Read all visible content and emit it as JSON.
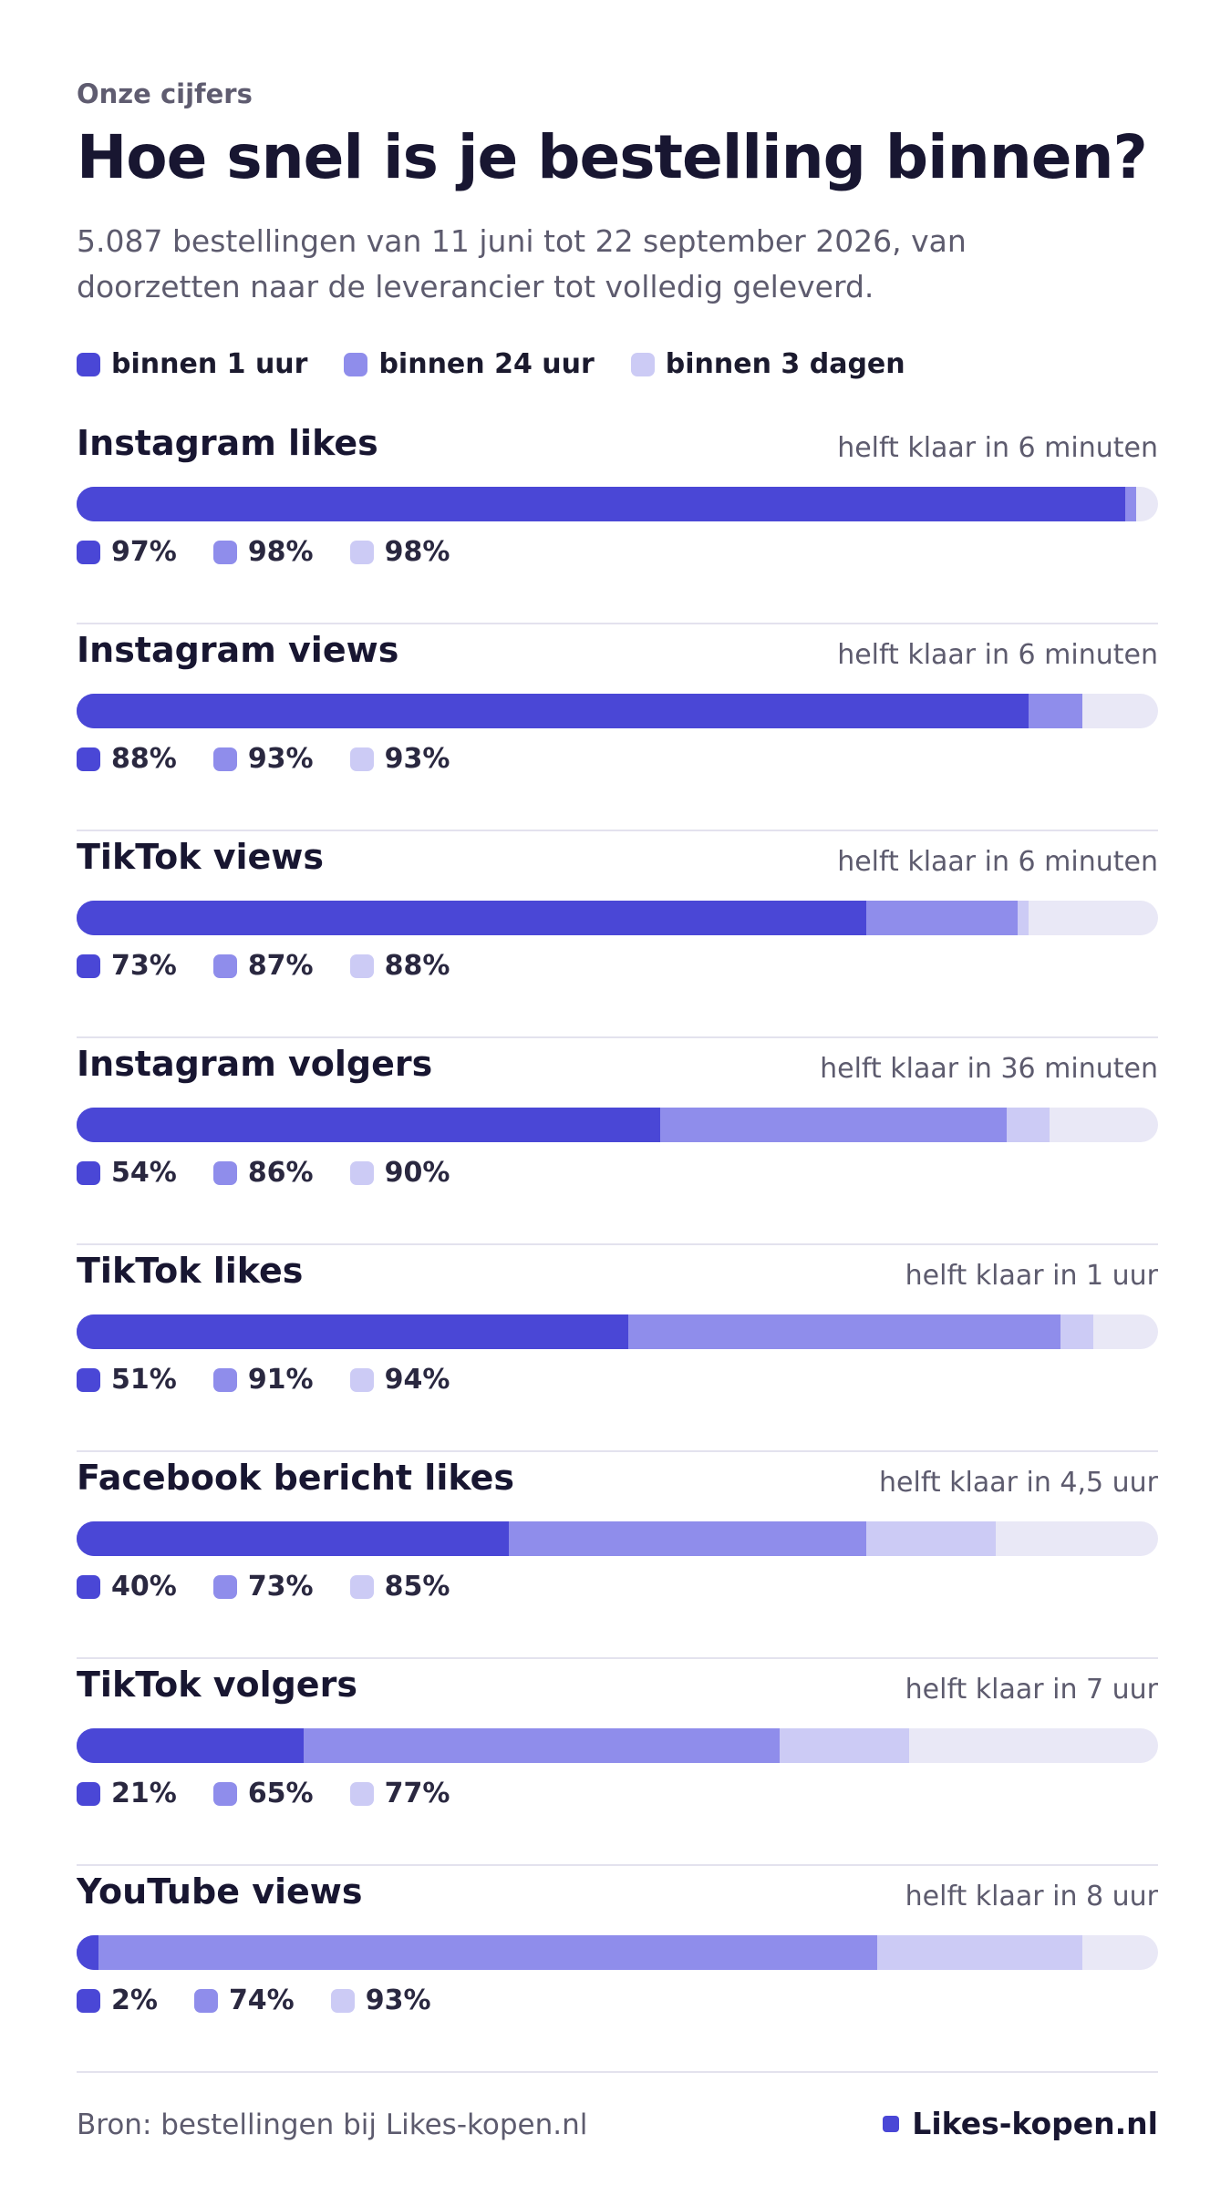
{
  "header": {
    "eyebrow": "Onze cijfers",
    "title": "Hoe snel is je bestelling binnen?",
    "subtitle": "5.087 bestellingen van 11 juni tot 22 september 2026, van doorzetten naar de leverancier tot volledig geleverd."
  },
  "legend": [
    "binnen 1 uur",
    "binnen 24 uur",
    "binnen 3 dagen"
  ],
  "colors": {
    "within_1h": "#4a47d6",
    "within_24h": "#8f8deb",
    "within_3d": "#cccbf5",
    "track": "#e9e8f6"
  },
  "chart_data": {
    "type": "bar",
    "stacked": "cumulative-percentage",
    "series": [
      {
        "name": "binnen 1 uur",
        "values": [
          97,
          88,
          73,
          54,
          51,
          40,
          21,
          2
        ]
      },
      {
        "name": "binnen 24 uur",
        "values": [
          98,
          93,
          87,
          86,
          91,
          73,
          65,
          74
        ]
      },
      {
        "name": "binnen 3 dagen",
        "values": [
          98,
          93,
          88,
          90,
          94,
          85,
          77,
          93
        ]
      }
    ],
    "categories": [
      "Instagram likes",
      "Instagram views",
      "TikTok views",
      "Instagram volgers",
      "TikTok likes",
      "Facebook bericht likes",
      "TikTok volgers",
      "YouTube views"
    ],
    "rows": [
      {
        "name": "Instagram likes",
        "half": "helft klaar in 6 minuten",
        "p1": 97,
        "p24": 98,
        "p3d": 98,
        "p1_label": "97%",
        "p24_label": "98%",
        "p3d_label": "98%"
      },
      {
        "name": "Instagram views",
        "half": "helft klaar in 6 minuten",
        "p1": 88,
        "p24": 93,
        "p3d": 93,
        "p1_label": "88%",
        "p24_label": "93%",
        "p3d_label": "93%"
      },
      {
        "name": "TikTok views",
        "half": "helft klaar in 6 minuten",
        "p1": 73,
        "p24": 87,
        "p3d": 88,
        "p1_label": "73%",
        "p24_label": "87%",
        "p3d_label": "88%"
      },
      {
        "name": "Instagram volgers",
        "half": "helft klaar in 36 minuten",
        "p1": 54,
        "p24": 86,
        "p3d": 90,
        "p1_label": "54%",
        "p24_label": "86%",
        "p3d_label": "90%"
      },
      {
        "name": "TikTok likes",
        "half": "helft klaar in 1 uur",
        "p1": 51,
        "p24": 91,
        "p3d": 94,
        "p1_label": "51%",
        "p24_label": "91%",
        "p3d_label": "94%"
      },
      {
        "name": "Facebook bericht likes",
        "half": "helft klaar in 4,5 uur",
        "p1": 40,
        "p24": 73,
        "p3d": 85,
        "p1_label": "40%",
        "p24_label": "73%",
        "p3d_label": "85%"
      },
      {
        "name": "TikTok volgers",
        "half": "helft klaar in 7 uur",
        "p1": 21,
        "p24": 65,
        "p3d": 77,
        "p1_label": "21%",
        "p24_label": "65%",
        "p3d_label": "77%"
      },
      {
        "name": "YouTube views",
        "half": "helft klaar in 8 uur",
        "p1": 2,
        "p24": 74,
        "p3d": 93,
        "p1_label": "2%",
        "p24_label": "74%",
        "p3d_label": "93%"
      }
    ],
    "xlim": [
      0,
      100
    ],
    "legend_position": "top-left"
  },
  "footer": {
    "source": "Bron: bestellingen bij Likes-kopen.nl",
    "brand": "Likes-kopen.nl"
  }
}
